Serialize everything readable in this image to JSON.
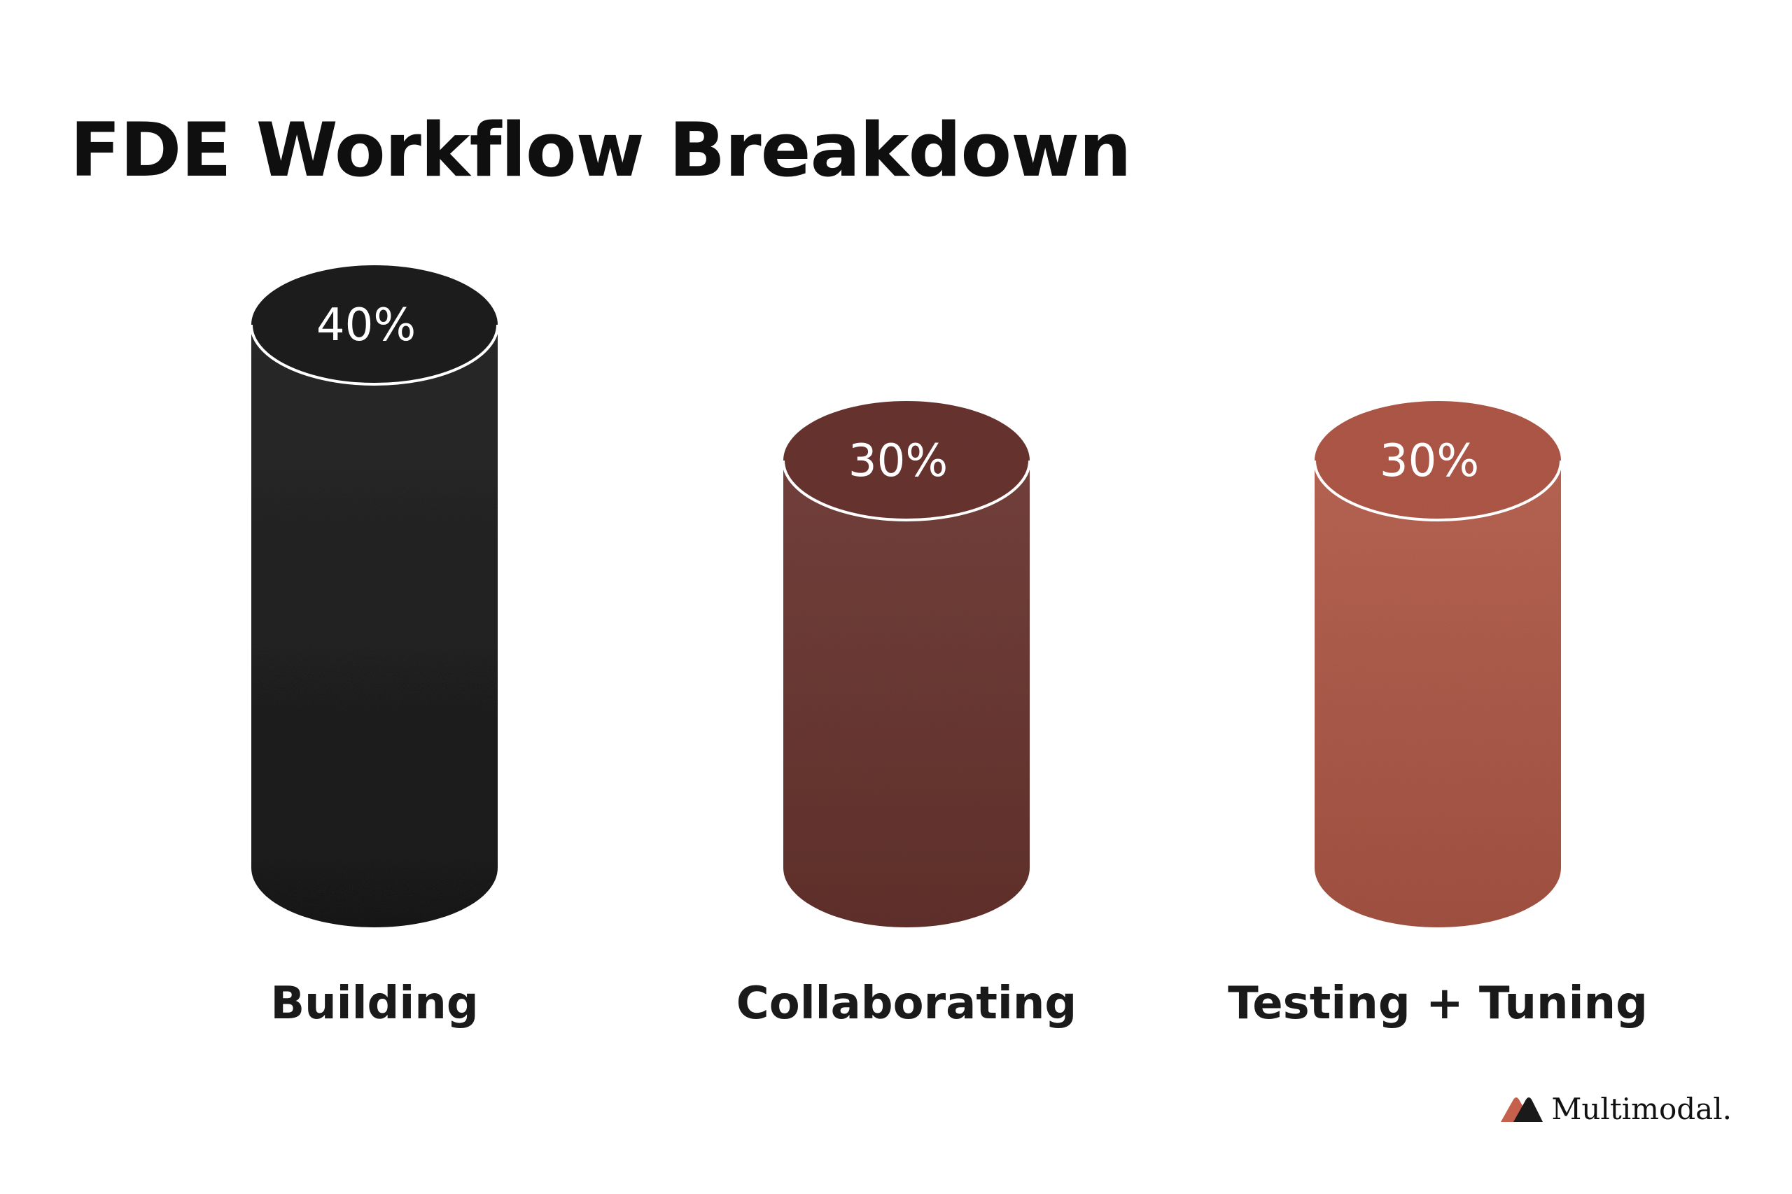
{
  "chart_data": {
    "type": "bar",
    "style": "cylinder",
    "title": "FDE Workflow Breakdown",
    "categories": [
      "Building",
      "Collaborating",
      "Testing + Tuning"
    ],
    "values": [
      40,
      30,
      30
    ],
    "value_labels": [
      "40%",
      "30%",
      "30%"
    ],
    "colors": [
      "#1c1c1c",
      "#6b3530",
      "#b35a48"
    ],
    "grid": false,
    "legend": "none"
  },
  "brand": {
    "name": "Multimodal.",
    "logo_icon": "multimodal-logo-icon",
    "logo_colors": [
      "#c4604c",
      "#1a1a1a"
    ]
  }
}
